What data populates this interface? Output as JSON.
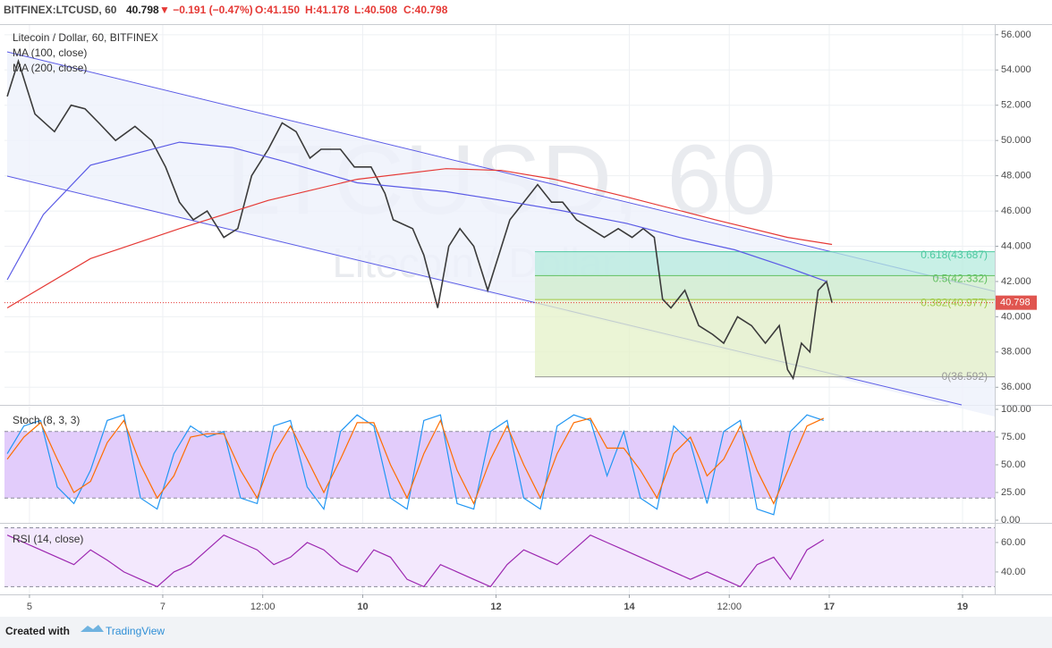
{
  "header": {
    "symbol": "BITFINEX:LTCUSD, 60",
    "price": 40.798,
    "change": "▼ −0.191 (−0.47%)",
    "ohlc": [
      "O:41.150",
      "H:41.178",
      "L:40.508",
      "C:40.798"
    ]
  },
  "footer": {
    "created": "Created with",
    "brand": "TradingView"
  },
  "chart_data": [
    {
      "type": "line",
      "watermark": "LTCUSD, 60",
      "watermark_subtitle": "Litecoin / Dollar",
      "xlim": [
        -9,
        347.6
      ],
      "ylim": [
        35,
        56.55
      ],
      "grid": true,
      "yticks": [
        {
          "value": 36,
          "label": "36.000"
        },
        {
          "value": 38,
          "label": "38.000"
        },
        {
          "value": 40,
          "label": "40.000"
        },
        {
          "value": 42,
          "label": "42.000"
        },
        {
          "value": 44,
          "label": "44.000"
        },
        {
          "value": 46,
          "label": "46.000"
        },
        {
          "value": 48,
          "label": "48.000"
        },
        {
          "value": 50,
          "label": "50.000"
        },
        {
          "value": 52,
          "label": "52.000"
        },
        {
          "value": 54,
          "label": "54.000"
        },
        {
          "value": 56,
          "label": "56.000"
        }
      ],
      "series": [
        {
          "name": "Litecoin / Dollar, 60, BITFINEX",
          "color": "#3b3b3b",
          "x": [
            -8,
            -4,
            2,
            9,
            15,
            20,
            25,
            31,
            38,
            44,
            49,
            54,
            59,
            64,
            70,
            75,
            80,
            86,
            91,
            96,
            101,
            105,
            112,
            117,
            123,
            128,
            131,
            138,
            142,
            147,
            151,
            155,
            160,
            165,
            168,
            173,
            178,
            183,
            188,
            192,
            197,
            202,
            207,
            212,
            217,
            221,
            225,
            228,
            231,
            236,
            241,
            246,
            250,
            255,
            260,
            265,
            270,
            273,
            275,
            278,
            281,
            284,
            287,
            289
          ],
          "values": [
            52.5,
            54.5,
            51.5,
            50.5,
            52.0,
            51.8,
            51.0,
            50.0,
            50.8,
            50.0,
            48.5,
            46.5,
            45.5,
            46.0,
            44.5,
            45.0,
            48.0,
            49.5,
            51.0,
            50.5,
            49.0,
            49.5,
            49.5,
            48.5,
            48.5,
            47.0,
            45.5,
            45.0,
            43.5,
            40.5,
            44.0,
            45.0,
            44.0,
            41.5,
            43.0,
            45.5,
            46.5,
            47.5,
            46.5,
            46.5,
            45.5,
            45.0,
            44.5,
            45.0,
            44.5,
            45.0,
            44.5,
            41.0,
            40.5,
            41.5,
            39.5,
            39.0,
            38.5,
            40.0,
            39.5,
            38.5,
            39.5,
            37.0,
            36.5,
            38.5,
            38.0,
            41.5,
            42.0,
            40.798
          ]
        },
        {
          "name": "MA (100, close)",
          "color": "#5b5be6",
          "x": [
            -8,
            5,
            22,
            54,
            73,
            92,
            118,
            150,
            170,
            189,
            215,
            234,
            254,
            273,
            287
          ],
          "values": [
            42.1,
            45.8,
            48.6,
            49.9,
            49.6,
            48.8,
            47.6,
            47.1,
            46.6,
            46.1,
            45.3,
            44.5,
            43.8,
            42.8,
            42.0
          ]
        },
        {
          "name": "MA (200, close)",
          "color": "#e53935",
          "x": [
            -8,
            22,
            54,
            86,
            118,
            150,
            170,
            189,
            215,
            247,
            273,
            289
          ],
          "values": [
            40.5,
            43.3,
            45.0,
            46.6,
            47.8,
            48.4,
            48.3,
            47.8,
            46.8,
            45.5,
            44.5,
            44.1
          ]
        }
      ],
      "fib_levels": [
        {
          "value": 43.687,
          "label": "0.618(43.687)"
        },
        {
          "value": 42.332,
          "label": "0.5(42.332)"
        },
        {
          "value": 40.977,
          "label": "0.382(40.977)"
        },
        {
          "value": 36.592,
          "label": "0(36.592)"
        }
      ]
    },
    {
      "type": "line",
      "title": "Stoch (8, 3, 3)",
      "xlim": [
        -9,
        347.6
      ],
      "ylim": [
        -2.4,
        102.4
      ],
      "band": [
        20,
        80
      ],
      "yticks": [
        {
          "value": 0,
          "label": "0.00"
        },
        {
          "value": 25,
          "label": "25.00"
        },
        {
          "value": 50,
          "label": "50.00"
        },
        {
          "value": 75,
          "label": "75.00"
        },
        {
          "value": 100,
          "label": "100.00"
        }
      ],
      "x": [
        -8,
        -2,
        4,
        10,
        16,
        22,
        28,
        34,
        40,
        46,
        52,
        58,
        64,
        70,
        76,
        82,
        88,
        94,
        100,
        106,
        112,
        118,
        124,
        130,
        136,
        142,
        148,
        154,
        160,
        166,
        172,
        178,
        184,
        190,
        196,
        202,
        208,
        214,
        220,
        226,
        232,
        238,
        244,
        250,
        256,
        262,
        268,
        274,
        280,
        286
      ],
      "series": [
        {
          "color": "#2196f3",
          "values": [
            60,
            85,
            90,
            30,
            15,
            45,
            90,
            95,
            20,
            10,
            60,
            85,
            75,
            80,
            20,
            15,
            85,
            90,
            30,
            10,
            80,
            95,
            85,
            20,
            10,
            90,
            95,
            15,
            10,
            80,
            90,
            20,
            10,
            85,
            95,
            90,
            40,
            80,
            20,
            10,
            85,
            70,
            15,
            80,
            90,
            10,
            5,
            80,
            95,
            90
          ]
        },
        {
          "color": "#ff6d00",
          "values": [
            55,
            75,
            88,
            55,
            25,
            35,
            70,
            90,
            50,
            20,
            40,
            75,
            78,
            78,
            45,
            20,
            60,
            85,
            55,
            25,
            55,
            88,
            88,
            50,
            20,
            60,
            90,
            45,
            15,
            55,
            85,
            50,
            20,
            60,
            88,
            92,
            65,
            65,
            45,
            20,
            60,
            75,
            40,
            55,
            85,
            45,
            15,
            50,
            85,
            92
          ]
        }
      ]
    },
    {
      "type": "line",
      "title": "RSI (14, close)",
      "xlim": [
        -9,
        347.6
      ],
      "ylim": [
        24.8,
        71.5
      ],
      "band": [
        30,
        70
      ],
      "yticks": [
        {
          "value": 40,
          "label": "40.00"
        },
        {
          "value": 60,
          "label": "60.00"
        }
      ],
      "xticks": [
        {
          "value": 0,
          "label": "5"
        },
        {
          "value": 48,
          "label": "7"
        },
        {
          "value": 84,
          "label": "12:00"
        },
        {
          "value": 120,
          "label": "10"
        },
        {
          "value": 168,
          "label": "12"
        },
        {
          "value": 216,
          "label": "14"
        },
        {
          "value": 252,
          "label": "12:00"
        },
        {
          "value": 288,
          "label": "17"
        },
        {
          "value": 336,
          "label": "19"
        }
      ],
      "x": [
        -8,
        -2,
        4,
        10,
        16,
        22,
        28,
        34,
        40,
        46,
        52,
        58,
        64,
        70,
        76,
        82,
        88,
        94,
        100,
        106,
        112,
        118,
        124,
        130,
        136,
        142,
        148,
        154,
        160,
        166,
        172,
        178,
        184,
        190,
        196,
        202,
        208,
        214,
        220,
        226,
        232,
        238,
        244,
        250,
        256,
        262,
        268,
        274,
        280,
        286
      ],
      "series": [
        {
          "color": "#9c27b0",
          "values": [
            65,
            60,
            55,
            50,
            45,
            55,
            48,
            40,
            35,
            30,
            40,
            45,
            55,
            65,
            60,
            55,
            45,
            50,
            60,
            55,
            45,
            40,
            55,
            50,
            35,
            30,
            45,
            40,
            35,
            30,
            45,
            55,
            50,
            45,
            55,
            65,
            60,
            55,
            50,
            45,
            40,
            35,
            40,
            35,
            30,
            45,
            50,
            35,
            55,
            62
          ]
        }
      ]
    }
  ]
}
